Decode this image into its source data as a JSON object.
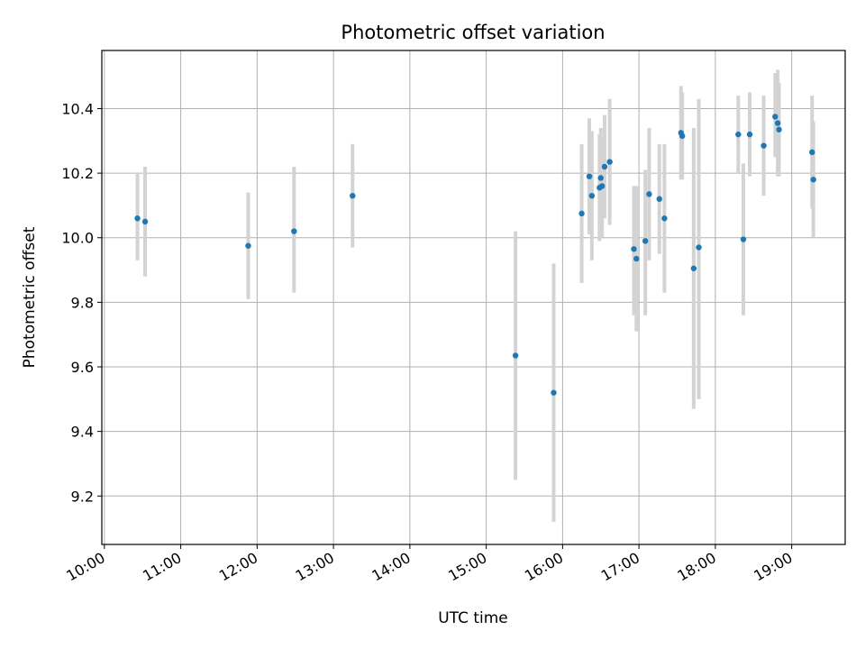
{
  "chart_data": {
    "type": "scatter",
    "title": "Photometric offset variation",
    "xlabel": "UTC time",
    "ylabel": "Photometric offset",
    "grid": true,
    "xlim": [
      "09:58",
      "19:42"
    ],
    "ylim": [
      9.05,
      10.58
    ],
    "x_ticks": [
      "10:00",
      "11:00",
      "12:00",
      "13:00",
      "14:00",
      "15:00",
      "16:00",
      "17:00",
      "18:00",
      "19:00"
    ],
    "y_ticks": [
      "9.2",
      "9.4",
      "9.6",
      "9.8",
      "10.0",
      "10.2",
      "10.4"
    ],
    "marker_color": "#1f77b4",
    "errorbar_color": "#d3d3d3",
    "points": [
      {
        "x": "10:26",
        "y": 10.06,
        "y_low": 9.93,
        "y_high": 10.2
      },
      {
        "x": "10:32",
        "y": 10.05,
        "y_low": 9.88,
        "y_high": 10.22
      },
      {
        "x": "11:53",
        "y": 9.975,
        "y_low": 9.81,
        "y_high": 10.14
      },
      {
        "x": "12:29",
        "y": 10.02,
        "y_low": 9.83,
        "y_high": 10.22
      },
      {
        "x": "13:15",
        "y": 10.13,
        "y_low": 9.97,
        "y_high": 10.29
      },
      {
        "x": "15:23",
        "y": 9.635,
        "y_low": 9.25,
        "y_high": 10.02
      },
      {
        "x": "15:53",
        "y": 9.52,
        "y_low": 9.12,
        "y_high": 9.92
      },
      {
        "x": "16:15",
        "y": 10.075,
        "y_low": 9.86,
        "y_high": 10.29
      },
      {
        "x": "16:21",
        "y": 10.19,
        "y_low": 10.01,
        "y_high": 10.37
      },
      {
        "x": "16:23",
        "y": 10.13,
        "y_low": 9.93,
        "y_high": 10.33
      },
      {
        "x": "16:29",
        "y": 10.155,
        "y_low": 9.99,
        "y_high": 10.32
      },
      {
        "x": "16:30",
        "y": 10.185,
        "y_low": 10.03,
        "y_high": 10.34
      },
      {
        "x": "16:31",
        "y": 10.16,
        "y_low": 10.0,
        "y_high": 10.31
      },
      {
        "x": "16:33",
        "y": 10.22,
        "y_low": 10.06,
        "y_high": 10.38
      },
      {
        "x": "16:37",
        "y": 10.235,
        "y_low": 10.04,
        "y_high": 10.43
      },
      {
        "x": "16:56",
        "y": 9.965,
        "y_low": 9.76,
        "y_high": 10.16
      },
      {
        "x": "16:58",
        "y": 9.935,
        "y_low": 9.71,
        "y_high": 10.16
      },
      {
        "x": "17:05",
        "y": 9.99,
        "y_low": 9.76,
        "y_high": 10.21
      },
      {
        "x": "17:08",
        "y": 10.135,
        "y_low": 9.93,
        "y_high": 10.34
      },
      {
        "x": "17:16",
        "y": 10.12,
        "y_low": 9.95,
        "y_high": 10.29
      },
      {
        "x": "17:20",
        "y": 10.06,
        "y_low": 9.83,
        "y_high": 10.29
      },
      {
        "x": "17:33",
        "y": 10.325,
        "y_low": 10.18,
        "y_high": 10.47
      },
      {
        "x": "17:34",
        "y": 10.315,
        "y_low": 10.18,
        "y_high": 10.45
      },
      {
        "x": "17:43",
        "y": 9.905,
        "y_low": 9.47,
        "y_high": 10.34
      },
      {
        "x": "17:47",
        "y": 9.97,
        "y_low": 9.5,
        "y_high": 10.43
      },
      {
        "x": "18:18",
        "y": 10.32,
        "y_low": 10.2,
        "y_high": 10.44
      },
      {
        "x": "18:22",
        "y": 9.995,
        "y_low": 9.76,
        "y_high": 10.23
      },
      {
        "x": "18:27",
        "y": 10.32,
        "y_low": 10.19,
        "y_high": 10.45
      },
      {
        "x": "18:38",
        "y": 10.285,
        "y_low": 10.13,
        "y_high": 10.44
      },
      {
        "x": "18:47",
        "y": 10.375,
        "y_low": 10.25,
        "y_high": 10.51
      },
      {
        "x": "18:49",
        "y": 10.355,
        "y_low": 10.19,
        "y_high": 10.52
      },
      {
        "x": "18:50",
        "y": 10.335,
        "y_low": 10.19,
        "y_high": 10.48
      },
      {
        "x": "19:16",
        "y": 10.265,
        "y_low": 10.09,
        "y_high": 10.44
      },
      {
        "x": "19:17",
        "y": 10.18,
        "y_low": 10.0,
        "y_high": 10.36
      }
    ]
  }
}
